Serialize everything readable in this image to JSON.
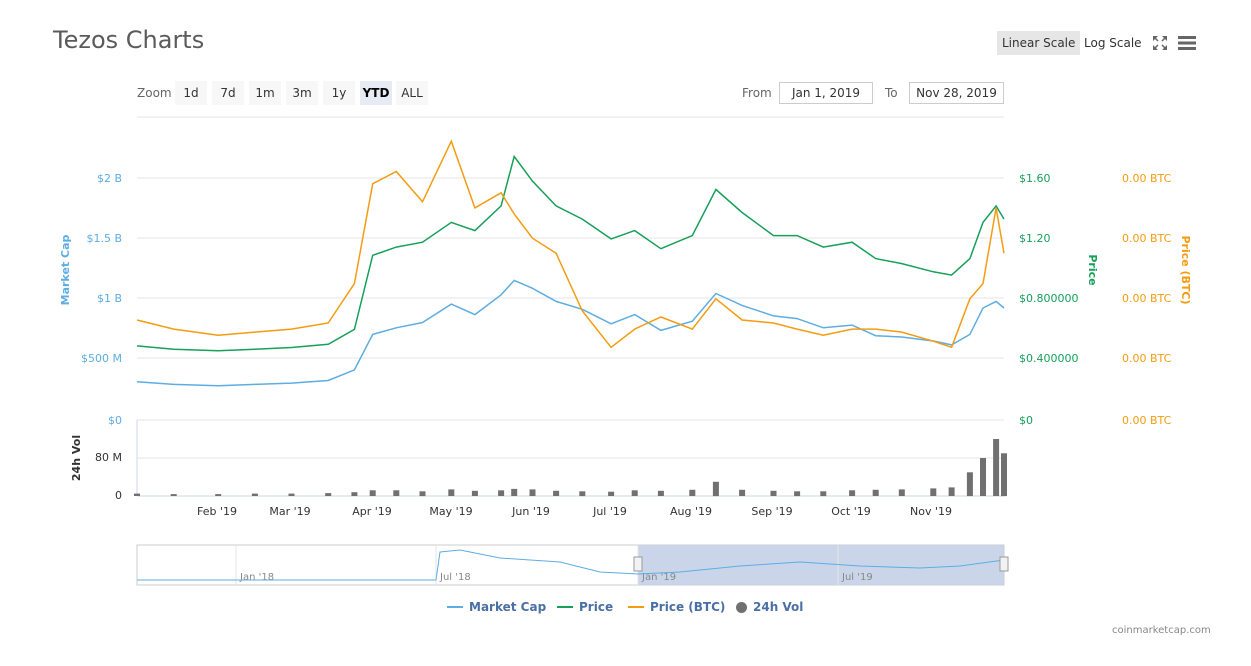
{
  "title": "Tezos Charts",
  "scale": {
    "linear_label": "Linear Scale",
    "log_label": "Log Scale",
    "active": "linear"
  },
  "icons": {
    "fullscreen": "fullscreen-icon",
    "menu": "hamburger-menu-icon"
  },
  "zoom": {
    "label": "Zoom",
    "options": [
      "1d",
      "7d",
      "1m",
      "3m",
      "1y",
      "YTD",
      "ALL"
    ],
    "active": "YTD"
  },
  "range": {
    "from_label": "From",
    "from_value": "Jan 1, 2019",
    "to_label": "To",
    "to_value": "Nov 28, 2019"
  },
  "colors": {
    "market_cap": "#5dade2",
    "price": "#16a05a",
    "price_btc": "#f39c12",
    "volume": "#707070",
    "navigator_fill": "#c5d0e8"
  },
  "legend": [
    {
      "name": "Market Cap",
      "color": "#5dade2",
      "marker": "line"
    },
    {
      "name": "Price",
      "color": "#16a05a",
      "marker": "line"
    },
    {
      "name": "Price (BTC)",
      "color": "#f39c12",
      "marker": "line"
    },
    {
      "name": "24h Vol",
      "color": "#707070",
      "marker": "dot"
    }
  ],
  "credit": "coinmarketcap.com",
  "chart_data": {
    "type": "line",
    "x_axis": {
      "ticks": [
        "Feb '19",
        "Mar '19",
        "Apr '19",
        "May '19",
        "Jun '19",
        "Jul '19",
        "Aug '19",
        "Sep '19",
        "Oct '19",
        "Nov '19"
      ]
    },
    "y_axes": {
      "market_cap": {
        "label": "Market Cap",
        "ticks": [
          "$0",
          "$500 M",
          "$1 B",
          "$1.5 B",
          "$2 B"
        ],
        "range": [
          0,
          2300000000
        ]
      },
      "price": {
        "label": "Price",
        "ticks": [
          "$0",
          "$0.400000",
          "$0.800000",
          "$1.20",
          "$1.60"
        ],
        "range": [
          0,
          1.84
        ]
      },
      "price_btc": {
        "label": "Price (BTC)",
        "ticks": [
          "0.00 BTC",
          "0.00 BTC",
          "0.00 BTC",
          "0.00 BTC",
          "0.00 BTC"
        ],
        "range": [
          0,
          1
        ]
      },
      "volume": {
        "label": "24h Vol",
        "ticks": [
          "0",
          "80 M"
        ],
        "range": [
          0,
          160000000
        ]
      }
    },
    "dates": [
      "2019-01-01",
      "2019-01-15",
      "2019-02-01",
      "2019-02-15",
      "2019-03-01",
      "2019-03-15",
      "2019-03-25",
      "2019-04-01",
      "2019-04-10",
      "2019-04-20",
      "2019-05-01",
      "2019-05-10",
      "2019-05-20",
      "2019-05-25",
      "2019-06-01",
      "2019-06-10",
      "2019-06-20",
      "2019-07-01",
      "2019-07-10",
      "2019-07-20",
      "2019-08-01",
      "2019-08-10",
      "2019-08-20",
      "2019-09-01",
      "2019-09-10",
      "2019-09-20",
      "2019-10-01",
      "2019-10-10",
      "2019-10-20",
      "2019-11-01",
      "2019-11-08",
      "2019-11-15",
      "2019-11-20",
      "2019-11-25",
      "2019-11-28"
    ],
    "series": [
      {
        "name": "Market Cap",
        "axis": "market_cap",
        "values": [
          290000000,
          270000000,
          260000000,
          270000000,
          280000000,
          300000000,
          380000000,
          650000000,
          700000000,
          740000000,
          880000000,
          800000000,
          950000000,
          1060000000,
          1000000000,
          900000000,
          840000000,
          730000000,
          800000000,
          680000000,
          750000000,
          960000000,
          870000000,
          790000000,
          770000000,
          700000000,
          720000000,
          640000000,
          630000000,
          600000000,
          570000000,
          650000000,
          850000000,
          900000000,
          850000000
        ]
      },
      {
        "name": "Price",
        "axis": "price",
        "values": [
          0.45,
          0.43,
          0.42,
          0.43,
          0.44,
          0.46,
          0.55,
          1.0,
          1.05,
          1.08,
          1.2,
          1.15,
          1.3,
          1.6,
          1.45,
          1.3,
          1.22,
          1.1,
          1.15,
          1.04,
          1.12,
          1.4,
          1.26,
          1.12,
          1.12,
          1.05,
          1.08,
          0.98,
          0.95,
          0.9,
          0.88,
          0.98,
          1.2,
          1.3,
          1.22
        ]
      },
      {
        "name": "Price (BTC)",
        "axis": "price_btc",
        "values": [
          0.33,
          0.3,
          0.28,
          0.29,
          0.3,
          0.32,
          0.45,
          0.78,
          0.82,
          0.72,
          0.92,
          0.7,
          0.75,
          0.68,
          0.6,
          0.55,
          0.36,
          0.24,
          0.3,
          0.34,
          0.3,
          0.4,
          0.33,
          0.32,
          0.3,
          0.28,
          0.3,
          0.3,
          0.29,
          0.26,
          0.24,
          0.4,
          0.45,
          0.7,
          0.55
        ]
      },
      {
        "name": "24h Vol",
        "axis": "volume",
        "type": "bar",
        "values": [
          5000000,
          4000000,
          4000000,
          5000000,
          5000000,
          6000000,
          8000000,
          12000000,
          12000000,
          10000000,
          14000000,
          11000000,
          12000000,
          15000000,
          14000000,
          11000000,
          10000000,
          9000000,
          12000000,
          11000000,
          13000000,
          30000000,
          13000000,
          11000000,
          10000000,
          10000000,
          12000000,
          13000000,
          14000000,
          16000000,
          18000000,
          50000000,
          80000000,
          120000000,
          90000000
        ]
      }
    ],
    "navigator": {
      "ticks": [
        "Jan '18",
        "Jul '18",
        "Jan '19",
        "Jul '19"
      ]
    }
  }
}
